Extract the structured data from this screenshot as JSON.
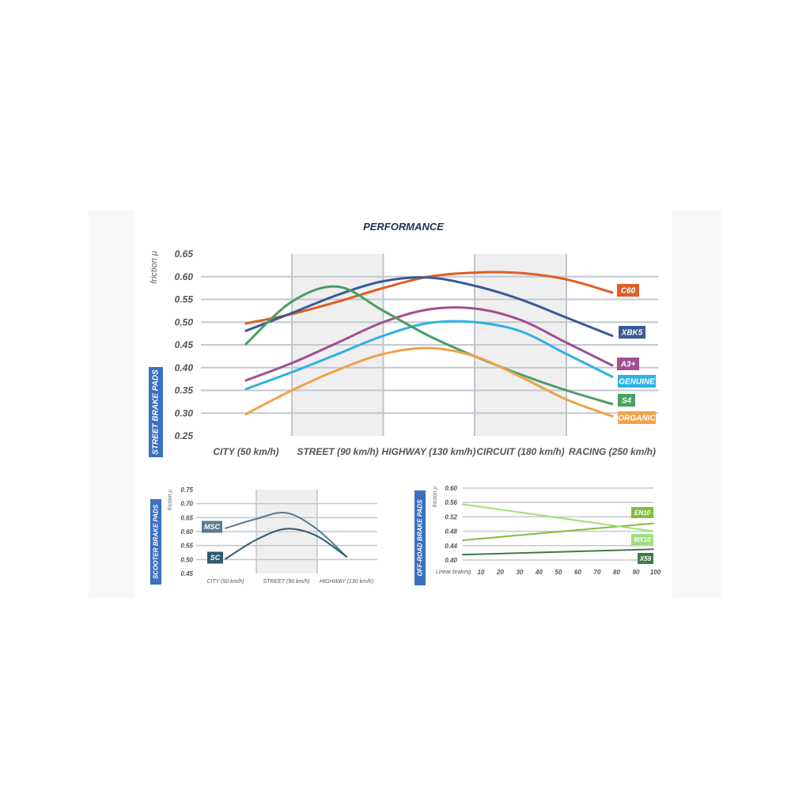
{
  "title": "PERFORMANCE",
  "chart_data": [
    {
      "id": "street",
      "type": "line",
      "section_label": "STREET BRAKE PADS",
      "ylabel": "friction μ",
      "ylim": [
        0.25,
        0.65
      ],
      "yticks": [
        "0.65",
        "0.60",
        "0.55",
        "0.50",
        "0.45",
        "0.40",
        "0.35",
        "0.30",
        "0.25"
      ],
      "categories": [
        "CITY (50 km/h)",
        "STREET (90 km/h)",
        "HIGHWAY (130 km/h)",
        "CIRCUIT (180 km/h)",
        "RACING (250 km/h)"
      ],
      "shaded_categories": [
        1,
        3
      ],
      "series": [
        {
          "name": "C60",
          "color": "#dd5f24",
          "x": [
            0,
            0.5,
            1,
            1.5,
            2,
            2.5,
            3,
            3.5,
            4
          ],
          "values": [
            0.497,
            0.518,
            0.545,
            0.575,
            0.6,
            0.609,
            0.608,
            0.594,
            0.565
          ]
        },
        {
          "name": "XBK5",
          "color": "#3a5a96",
          "x": [
            0,
            0.5,
            1,
            1.5,
            2,
            2.5,
            3,
            3.5,
            4
          ],
          "values": [
            0.481,
            0.52,
            0.56,
            0.59,
            0.598,
            0.58,
            0.55,
            0.51,
            0.47
          ]
        },
        {
          "name": "A3+",
          "color": "#a24f8f",
          "x": [
            0,
            0.5,
            1,
            1.5,
            2,
            2.5,
            3,
            3.5,
            4
          ],
          "values": [
            0.372,
            0.41,
            0.455,
            0.5,
            0.528,
            0.53,
            0.505,
            0.455,
            0.405
          ]
        },
        {
          "name": "GENUINE",
          "color": "#2eb1e4",
          "x": [
            0,
            0.5,
            1,
            1.5,
            2,
            2.5,
            3,
            3.5,
            4
          ],
          "values": [
            0.353,
            0.39,
            0.43,
            0.47,
            0.498,
            0.5,
            0.48,
            0.43,
            0.38
          ]
        },
        {
          "name": "S4",
          "color": "#4a9e62",
          "x": [
            0,
            0.5,
            1,
            1.5,
            2,
            2.5,
            3,
            3.5,
            4
          ],
          "values": [
            0.452,
            0.545,
            0.578,
            0.525,
            0.47,
            0.425,
            0.385,
            0.35,
            0.32
          ]
        },
        {
          "name": "ORGANIC",
          "color": "#f1a24a",
          "x": [
            0,
            0.5,
            1,
            1.5,
            2,
            2.5,
            3,
            3.5,
            4
          ],
          "values": [
            0.298,
            0.35,
            0.395,
            0.43,
            0.443,
            0.425,
            0.38,
            0.33,
            0.293
          ]
        }
      ]
    },
    {
      "id": "scooter",
      "type": "line",
      "section_label": "SCOOTER BRAKE PADS",
      "ylabel": "friction μ",
      "ylim": [
        0.45,
        0.75
      ],
      "yticks": [
        "0.75",
        "0.70",
        "0.65",
        "0.60",
        "0.55",
        "0.50",
        "0.45"
      ],
      "categories": [
        "CITY (50 km/h)",
        "STREET (90 km/h)",
        "HIGHWAY (130 km/h)"
      ],
      "shaded_categories": [
        1
      ],
      "series": [
        {
          "name": "MSC",
          "color": "#5a7a90",
          "x": [
            0,
            0.5,
            1,
            1.5,
            2
          ],
          "values": [
            0.612,
            0.645,
            0.667,
            0.61,
            0.51
          ]
        },
        {
          "name": "SC",
          "color": "#2e5a70",
          "x": [
            0,
            0.5,
            1,
            1.5,
            2
          ],
          "values": [
            0.502,
            0.57,
            0.61,
            0.585,
            0.51
          ]
        }
      ]
    },
    {
      "id": "offroad",
      "type": "line",
      "section_label": "OFF-ROAD BRAKE PADS",
      "ylabel": "friction μ",
      "ylim": [
        0.4,
        0.6
      ],
      "yticks": [
        "0.60",
        "0.56",
        "0.52",
        "0.48",
        "0.44",
        "0.40"
      ],
      "xlabel": "Linear braking",
      "xticks": [
        "10",
        "20",
        "30",
        "40",
        "50",
        "60",
        "70",
        "80",
        "90",
        "100"
      ],
      "series": [
        {
          "name": "EN10",
          "color": "#82bd3c",
          "x": [
            0,
            100
          ],
          "values": [
            0.455,
            0.502
          ]
        },
        {
          "name": "MX10",
          "color": "#9ee07a",
          "x": [
            0,
            100
          ],
          "values": [
            0.555,
            0.48
          ]
        },
        {
          "name": "X59",
          "color": "#3f7b47",
          "x": [
            0,
            100
          ],
          "values": [
            0.415,
            0.43
          ]
        }
      ]
    }
  ]
}
